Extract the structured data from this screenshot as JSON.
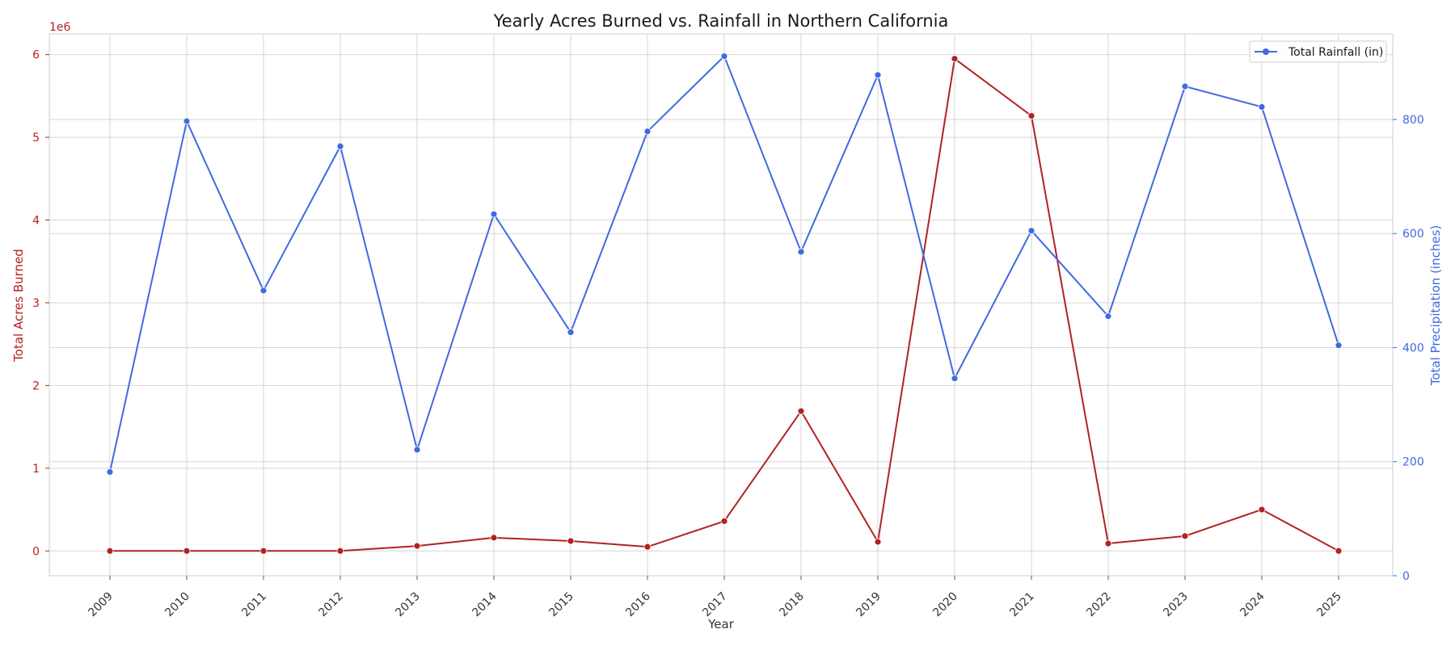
{
  "chart_data": {
    "type": "line",
    "title": "Yearly Acres Burned vs. Rainfall in Northern California",
    "xlabel": "Year",
    "x": [
      "2009",
      "2010",
      "2011",
      "2012",
      "2013",
      "2014",
      "2015",
      "2016",
      "2017",
      "2018",
      "2019",
      "2020",
      "2021",
      "2022",
      "2023",
      "2024",
      "2025"
    ],
    "grid": true,
    "legend": {
      "position": "top-right",
      "entries": [
        "Total Rainfall (in)"
      ]
    },
    "left_axis": {
      "label": "Total Acres Burned",
      "offset_label": "1e6",
      "ylim": [
        -0.3,
        6.25
      ],
      "ticks": [
        0,
        1,
        2,
        3,
        4,
        5,
        6
      ],
      "tick_labels": [
        "0",
        "1",
        "2",
        "3",
        "4",
        "5",
        "6"
      ],
      "color": "#b22222"
    },
    "right_axis": {
      "label": "Total Precipitation (inches)",
      "ylim": [
        0,
        950
      ],
      "ticks": [
        0,
        200,
        400,
        600,
        800
      ],
      "tick_labels": [
        "0",
        "200",
        "400",
        "600",
        "800"
      ],
      "color": "#4169e1"
    },
    "series": [
      {
        "name": "Total Acres Burned",
        "axis": "left",
        "color": "#b22222",
        "values": [
          0.0,
          0.0,
          0.0,
          0.0,
          0.06,
          0.16,
          0.12,
          0.05,
          0.36,
          1.69,
          0.11,
          5.95,
          5.26,
          0.09,
          0.18,
          0.5,
          0.0
        ]
      },
      {
        "name": "Total Rainfall (in)",
        "axis": "right",
        "color": "#4169e1",
        "values": [
          182,
          797,
          500,
          753,
          221,
          634,
          427,
          779,
          911,
          568,
          878,
          346,
          605,
          455,
          858,
          822,
          404
        ]
      }
    ]
  }
}
